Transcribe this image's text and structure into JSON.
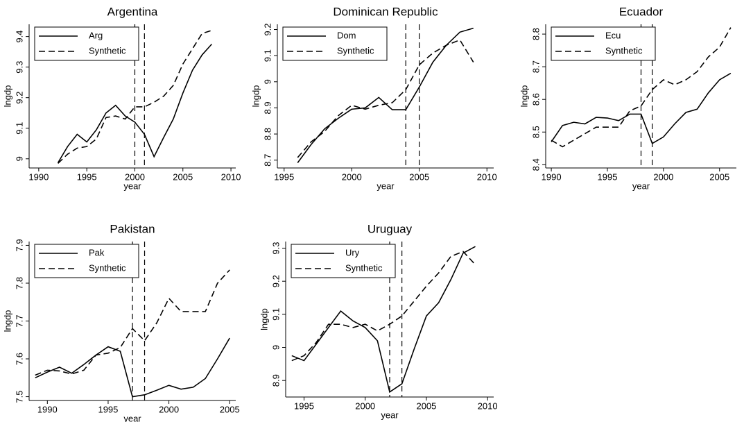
{
  "chart_data": [
    {
      "type": "line",
      "title": "Argentina",
      "xlabel": "year",
      "ylabel": "lngdp",
      "x": [
        1992,
        1993,
        1994,
        1995,
        1996,
        1997,
        1998,
        1999,
        2000,
        2001,
        2002,
        2003,
        2004,
        2005,
        2006,
        2007,
        2008
      ],
      "series": [
        {
          "name": "Arg",
          "color": "#000000",
          "style": "solid",
          "values": [
            8.987,
            9.04,
            9.08,
            9.055,
            9.095,
            9.15,
            9.175,
            9.14,
            9.12,
            9.08,
            9.007,
            9.07,
            9.13,
            9.215,
            9.29,
            9.34,
            9.375
          ]
        },
        {
          "name": "Synthetic",
          "color": "#000000",
          "style": "dashed",
          "values": [
            8.985,
            9.015,
            9.035,
            9.04,
            9.065,
            9.135,
            9.14,
            9.13,
            9.17,
            9.17,
            9.185,
            9.205,
            9.24,
            9.31,
            9.36,
            9.41,
            9.42
          ]
        }
      ],
      "vlines": [
        2000,
        2001
      ],
      "xlim": [
        1989,
        2010.5
      ],
      "ylim": [
        8.97,
        9.44
      ],
      "xticks": [
        1990,
        1995,
        2000,
        2005,
        2010
      ],
      "yticks": [
        9,
        9.1,
        9.2,
        9.3,
        9.4
      ],
      "legend": "upper-left"
    },
    {
      "type": "line",
      "title": "Dominican Republic",
      "xlabel": "year",
      "ylabel": "lngdp",
      "x": [
        1996,
        1997,
        1998,
        1999,
        2000,
        2001,
        2002,
        2003,
        2004,
        2005,
        2006,
        2007,
        2008,
        2009
      ],
      "series": [
        {
          "name": "Dom",
          "color": "#000000",
          "style": "solid",
          "values": [
            8.69,
            8.76,
            8.82,
            8.86,
            8.895,
            8.9,
            8.94,
            8.893,
            8.893,
            8.98,
            9.075,
            9.14,
            9.19,
            9.205
          ]
        },
        {
          "name": "Synthetic",
          "color": "#000000",
          "style": "dashed",
          "values": [
            8.71,
            8.77,
            8.81,
            8.87,
            8.91,
            8.895,
            8.91,
            8.92,
            8.97,
            9.065,
            9.11,
            9.14,
            9.16,
            9.075
          ]
        }
      ],
      "vlines": [
        2004,
        2005
      ],
      "xlim": [
        1994.5,
        2010.5
      ],
      "ylim": [
        8.67,
        9.22
      ],
      "xticks": [
        1995,
        2000,
        2005,
        2010
      ],
      "yticks": [
        8.7,
        8.8,
        8.9,
        9,
        9.1,
        9.2
      ],
      "legend": "upper-left"
    },
    {
      "type": "line",
      "title": "Ecuador",
      "xlabel": "year",
      "ylabel": "lngdp",
      "x": [
        1990,
        1991,
        1992,
        1993,
        1994,
        1995,
        1996,
        1997,
        1998,
        1999,
        2000,
        2001,
        2002,
        2003,
        2004,
        2005,
        2006
      ],
      "series": [
        {
          "name": "Ecu",
          "color": "#000000",
          "style": "solid",
          "values": [
            8.47,
            8.52,
            8.53,
            8.525,
            8.545,
            8.543,
            8.535,
            8.555,
            8.555,
            8.465,
            8.485,
            8.525,
            8.56,
            8.57,
            8.62,
            8.66,
            8.68
          ]
        },
        {
          "name": "Synthetic",
          "color": "#000000",
          "style": "dashed",
          "values": [
            8.475,
            8.455,
            8.475,
            8.495,
            8.515,
            8.515,
            8.515,
            8.565,
            8.58,
            8.63,
            8.66,
            8.645,
            8.66,
            8.685,
            8.73,
            8.76,
            8.82
          ]
        }
      ],
      "vlines": [
        1998,
        1999
      ],
      "xlim": [
        1989.5,
        2006.5
      ],
      "ylim": [
        8.39,
        8.83
      ],
      "xticks": [
        1990,
        1995,
        2000,
        2005
      ],
      "yticks": [
        8.4,
        8.5,
        8.6,
        8.7,
        8.8
      ],
      "legend": "upper-left"
    },
    {
      "type": "line",
      "title": "Pakistan",
      "xlabel": "year",
      "ylabel": "lngdp",
      "x": [
        1989,
        1990,
        1991,
        1992,
        1993,
        1994,
        1995,
        1996,
        1997,
        1998,
        1999,
        2000,
        2001,
        2002,
        2003,
        2004,
        2005
      ],
      "series": [
        {
          "name": "Pak",
          "color": "#000000",
          "style": "solid",
          "values": [
            7.55,
            7.565,
            7.578,
            7.562,
            7.585,
            7.61,
            7.632,
            7.62,
            7.5,
            7.505,
            7.517,
            7.53,
            7.52,
            7.525,
            7.548,
            7.6,
            7.655
          ]
        },
        {
          "name": "Synthetic",
          "color": "#000000",
          "style": "dashed",
          "values": [
            7.557,
            7.57,
            7.568,
            7.56,
            7.57,
            7.61,
            7.615,
            7.63,
            7.68,
            7.648,
            7.695,
            7.76,
            7.725,
            7.725,
            7.725,
            7.8,
            7.835
          ]
        }
      ],
      "vlines": [
        1997,
        1998
      ],
      "xlim": [
        1988.5,
        2005.5
      ],
      "ylim": [
        7.49,
        7.91
      ],
      "xticks": [
        1990,
        1995,
        2000,
        2005
      ],
      "yticks": [
        7.5,
        7.6,
        7.7,
        7.8,
        7.9
      ],
      "legend": "upper-left"
    },
    {
      "type": "line",
      "title": "Uruguay",
      "xlabel": "year",
      "ylabel": "lngdp",
      "x": [
        1994,
        1995,
        1996,
        1997,
        1998,
        1999,
        2000,
        2001,
        2002,
        2003,
        2004,
        2005,
        2006,
        2007,
        2008,
        2009
      ],
      "series": [
        {
          "name": "Ury",
          "color": "#000000",
          "style": "solid",
          "values": [
            8.975,
            8.96,
            9.01,
            9.06,
            9.11,
            9.08,
            9.06,
            9.02,
            8.865,
            8.89,
            8.995,
            9.095,
            9.135,
            9.205,
            9.285,
            9.305
          ]
        },
        {
          "name": "Synthetic",
          "color": "#000000",
          "style": "dashed",
          "values": [
            8.96,
            8.975,
            9.015,
            9.07,
            9.07,
            9.06,
            9.07,
            9.05,
            9.07,
            9.095,
            9.14,
            9.185,
            9.225,
            9.275,
            9.29,
            9.25
          ]
        }
      ],
      "vlines": [
        2002,
        2003
      ],
      "xlim": [
        1993.5,
        2010.5
      ],
      "ylim": [
        8.85,
        9.32
      ],
      "xticks": [
        1995,
        2000,
        2005,
        2010
      ],
      "yticks": [
        8.9,
        9,
        9.1,
        9.2,
        9.3
      ],
      "legend": "upper-left"
    }
  ]
}
